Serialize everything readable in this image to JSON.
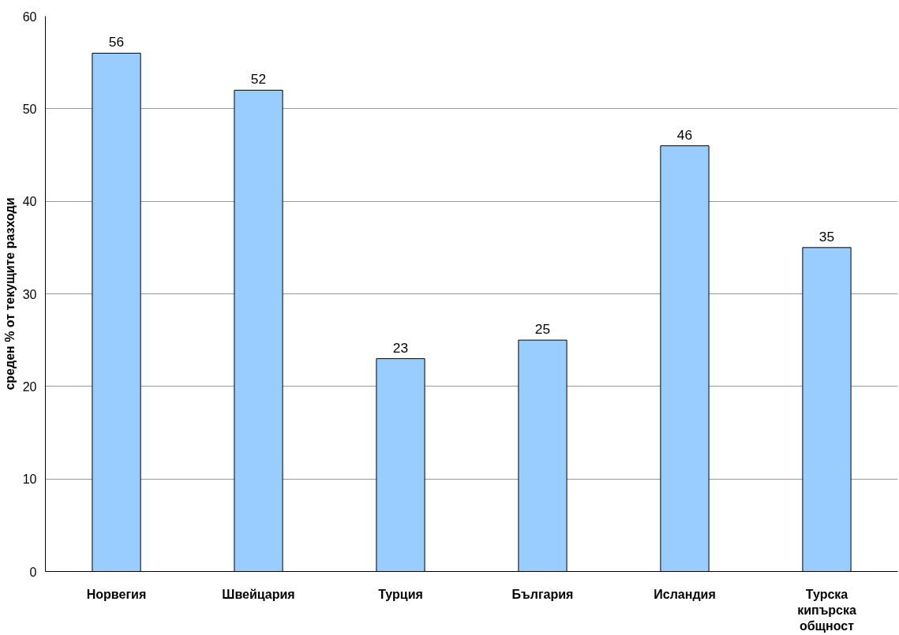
{
  "chart_data": {
    "type": "bar",
    "ylabel": "среден % от текущите разходи",
    "categories": [
      "Норвегия",
      "Швейцария",
      "Турция",
      "България",
      "Исландия",
      "Турска кипърска общност"
    ],
    "values": [
      56,
      52,
      23,
      25,
      46,
      35
    ],
    "color": "#99ccff",
    "ylim": [
      0,
      60
    ],
    "yticks": [
      0,
      10,
      20,
      30,
      40,
      50,
      60
    ],
    "grid": "y",
    "data_labels": true
  }
}
